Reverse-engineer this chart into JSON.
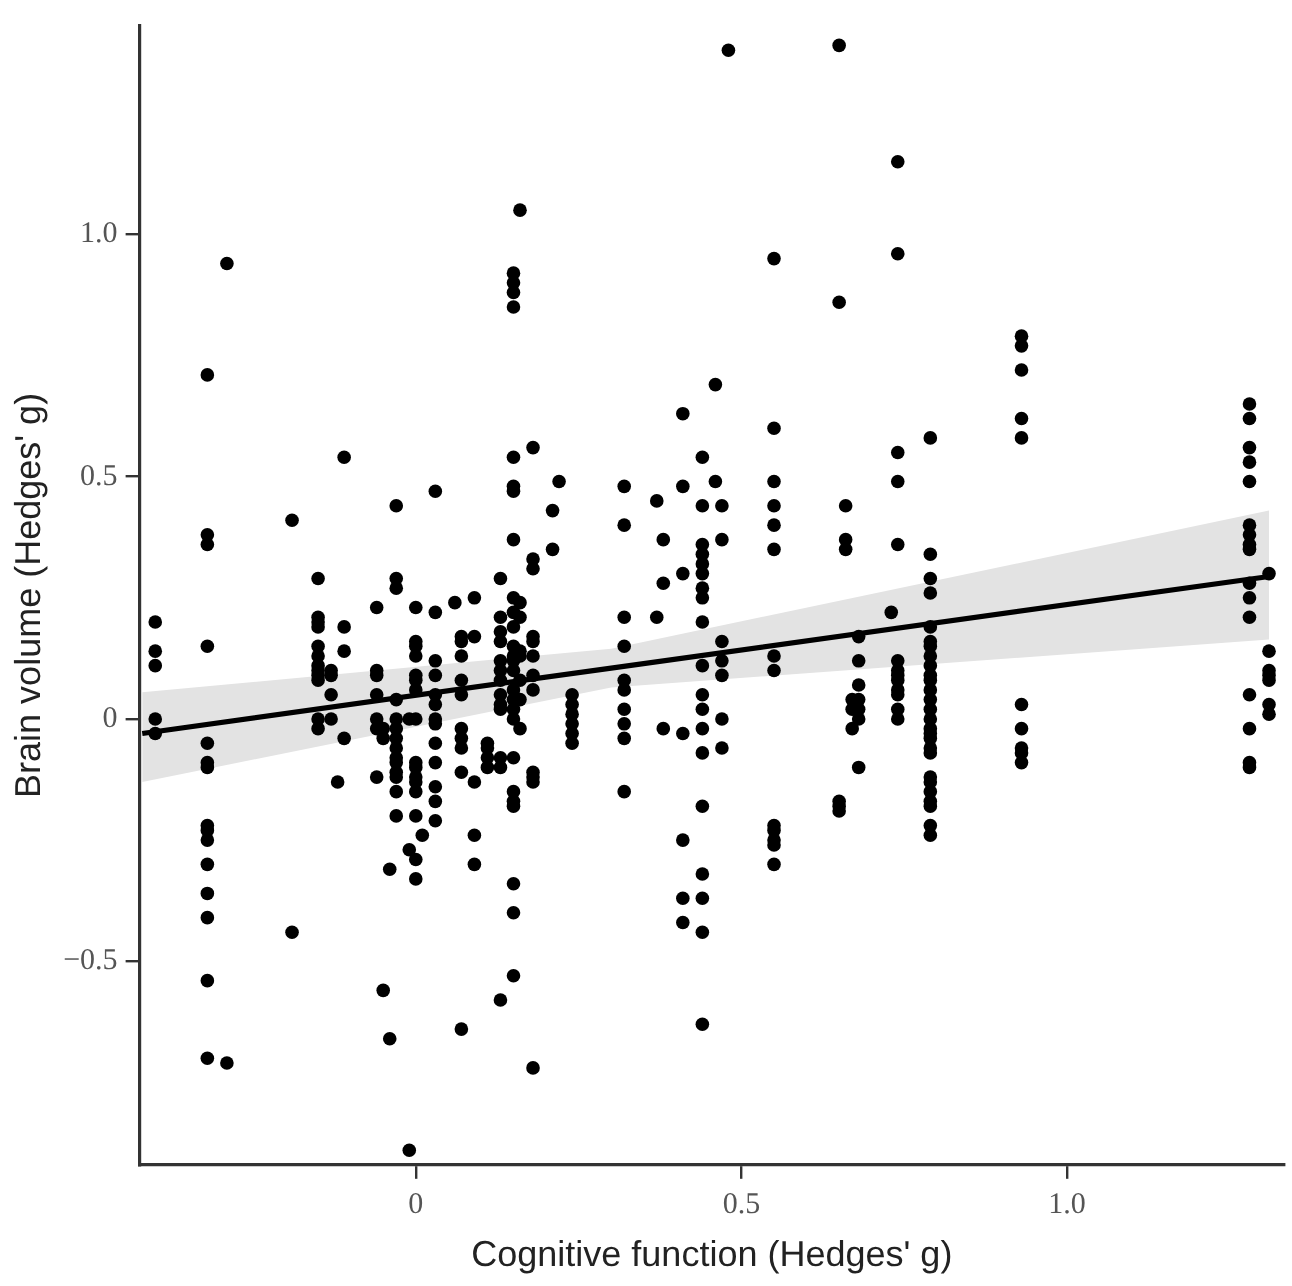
{
  "chart_data": {
    "type": "scatter",
    "xlabel": "Cognitive function (Hedges' g)",
    "ylabel": "Brain volume (Hedges' g)",
    "xlim": [
      -0.424,
      1.333
    ],
    "ylim": [
      -0.92,
      1.43
    ],
    "xticks": [
      0,
      0.5,
      {
        "value": 1,
        "label": "1.0"
      }
    ],
    "yticks": [
      {
        "value": -0.5,
        "label": "−0.5"
      },
      0,
      0.5,
      {
        "value": 1,
        "label": "1.0"
      }
    ],
    "grid": false,
    "series": [
      {
        "marker": "circle",
        "color": "#000000",
        "x": [
          -0.4,
          -0.4,
          -0.4,
          -0.4,
          -0.4,
          -0.32,
          -0.32,
          -0.32,
          -0.32,
          -0.32,
          -0.32,
          -0.32,
          -0.32,
          -0.32,
          -0.32,
          -0.32,
          -0.32,
          -0.32,
          -0.32,
          -0.32,
          -0.29,
          -0.29,
          -0.19,
          -0.19,
          -0.15,
          -0.15,
          -0.15,
          -0.15,
          -0.15,
          -0.15,
          -0.15,
          -0.15,
          -0.15,
          -0.15,
          -0.15,
          -0.15,
          -0.13,
          -0.13,
          -0.13,
          -0.13,
          -0.11,
          -0.11,
          -0.11,
          -0.11,
          -0.12,
          -0.06,
          -0.06,
          -0.06,
          -0.06,
          -0.06,
          -0.06,
          -0.06,
          -0.05,
          -0.05,
          -0.05,
          -0.04,
          -0.04,
          -0.03,
          -0.03,
          -0.03,
          -0.03,
          -0.03,
          -0.03,
          -0.03,
          -0.03,
          -0.03,
          -0.03,
          -0.03,
          -0.03,
          -0.03,
          -0.03,
          -0.01,
          -0.01,
          -0.01,
          0,
          0,
          0,
          0,
          0,
          0,
          0,
          0,
          0,
          0,
          0,
          0,
          0,
          0,
          0,
          0,
          0.01,
          0.03,
          0.03,
          0.03,
          0.03,
          0.03,
          0.03,
          0.03,
          0.03,
          0.03,
          0.03,
          0.03,
          0.03,
          0.03,
          0.06,
          0.07,
          0.07,
          0.07,
          0.07,
          0.07,
          0.07,
          0.07,
          0.07,
          0.07,
          0.07,
          0.09,
          0.09,
          0.09,
          0.09,
          0.09,
          0.11,
          0.11,
          0.11,
          0.11,
          0.13,
          0.13,
          0.13,
          0.13,
          0.13,
          0.13,
          0.13,
          0.13,
          0.13,
          0.13,
          0.13,
          0.13,
          0.13,
          0.15,
          0.15,
          0.15,
          0.15,
          0.15,
          0.15,
          0.15,
          0.15,
          0.15,
          0.15,
          0.15,
          0.15,
          0.15,
          0.15,
          0.15,
          0.15,
          0.15,
          0.15,
          0.15,
          0.15,
          0.15,
          0.15,
          0.15,
          0.15,
          0.15,
          0.15,
          0.16,
          0.16,
          0.16,
          0.16,
          0.16,
          0.16,
          0.16,
          0.16,
          0.18,
          0.18,
          0.18,
          0.18,
          0.18,
          0.18,
          0.18,
          0.18,
          0.18,
          0.18,
          0.18,
          0.18,
          0.21,
          0.21,
          0.22,
          0.24,
          0.24,
          0.24,
          0.24,
          0.24,
          0.24,
          0.32,
          0.32,
          0.32,
          0.32,
          0.32,
          0.32,
          0.32,
          0.32,
          0.32,
          0.32,
          0.37,
          0.37,
          0.38,
          0.38,
          0.38,
          0.41,
          0.41,
          0.41,
          0.41,
          0.41,
          0.41,
          0.41,
          0.44,
          0.44,
          0.44,
          0.44,
          0.44,
          0.44,
          0.44,
          0.44,
          0.44,
          0.44,
          0.44,
          0.44,
          0.44,
          0.44,
          0.44,
          0.44,
          0.44,
          0.44,
          0.44,
          0.46,
          0.46,
          0.47,
          0.47,
          0.47,
          0.47,
          0.47,
          0.47,
          0.47,
          0.48,
          0.55,
          0.55,
          0.55,
          0.55,
          0.55,
          0.55,
          0.55,
          0.55,
          0.55,
          0.55,
          0.55,
          0.55,
          0.55,
          0.65,
          0.65,
          0.65,
          0.65,
          0.65,
          0.66,
          0.66,
          0.66,
          0.68,
          0.68,
          0.68,
          0.68,
          0.68,
          0.68,
          0.68,
          0.67,
          0.67,
          0.67,
          0.73,
          0.74,
          0.74,
          0.74,
          0.74,
          0.74,
          0.74,
          0.74,
          0.74,
          0.74,
          0.74,
          0.74,
          0.74,
          0.74,
          0.79,
          0.79,
          0.79,
          0.79,
          0.79,
          0.79,
          0.79,
          0.79,
          0.79,
          0.79,
          0.79,
          0.79,
          0.79,
          0.79,
          0.79,
          0.79,
          0.79,
          0.79,
          0.79,
          0.79,
          0.79,
          0.79,
          0.79,
          0.79,
          0.79,
          0.79,
          0.79,
          0.93,
          0.93,
          0.93,
          0.93,
          0.93,
          0.93,
          0.93,
          0.93,
          0.93,
          0.93,
          1.28,
          1.28,
          1.28,
          1.28,
          1.28,
          1.28,
          1.28,
          1.28,
          1.28,
          1.28,
          1.28,
          1.28,
          1.28,
          1.28,
          1.28,
          1.28,
          1.31,
          1.31,
          1.31,
          1.31,
          1.31,
          1.31,
          1.31
        ],
        "values": [
          0.2,
          0.14,
          0.11,
          0,
          -0.03,
          0.71,
          0.38,
          0.36,
          0.15,
          -0.05,
          -0.09,
          -0.1,
          -0.22,
          -0.23,
          -0.25,
          -0.3,
          -0.36,
          -0.41,
          -0.54,
          -0.7,
          0.94,
          -0.71,
          0.41,
          -0.44,
          0.29,
          0.21,
          0.2,
          0.19,
          0.15,
          0.13,
          0.11,
          0.1,
          0.09,
          0.08,
          0,
          -0.02,
          0.1,
          0.09,
          0.05,
          0,
          0.54,
          0.19,
          0.14,
          -0.04,
          -0.13,
          0.23,
          0.1,
          0.09,
          0.05,
          0,
          -0.02,
          -0.12,
          -0.56,
          -0.04,
          -0.02,
          -0.66,
          -0.31,
          0.44,
          0.29,
          0.27,
          0.04,
          0,
          -0.02,
          -0.04,
          -0.06,
          -0.08,
          -0.09,
          -0.11,
          -0.12,
          -0.15,
          -0.2,
          -0.89,
          -0.27,
          0,
          0.23,
          0.16,
          0.15,
          0.13,
          0.09,
          0.08,
          0.06,
          0,
          -0.09,
          -0.1,
          -0.12,
          -0.13,
          -0.15,
          -0.2,
          -0.29,
          -0.33,
          -0.24,
          0.47,
          0.22,
          0.12,
          0.09,
          0.05,
          0.03,
          0,
          -0.01,
          -0.05,
          -0.09,
          -0.14,
          -0.17,
          -0.21,
          0.24,
          0.17,
          0.16,
          0.13,
          0.08,
          0.05,
          -0.02,
          -0.04,
          -0.06,
          -0.11,
          -0.64,
          0.25,
          0.17,
          -0.13,
          -0.24,
          -0.3,
          -0.05,
          -0.06,
          -0.08,
          -0.1,
          0.29,
          0.21,
          0.18,
          0.16,
          0.12,
          0.1,
          0.08,
          0.05,
          0.03,
          0.02,
          -0.08,
          -0.1,
          -0.58,
          0.92,
          0.9,
          0.88,
          0.85,
          0.54,
          0.48,
          0.47,
          0.37,
          0.25,
          0.22,
          0.19,
          0.15,
          0.13,
          0.12,
          0.1,
          0.06,
          0.04,
          0.02,
          0,
          -0.08,
          -0.15,
          -0.17,
          -0.18,
          -0.34,
          -0.4,
          -0.53,
          1.05,
          0.24,
          0.21,
          0.14,
          0.13,
          0.08,
          0.04,
          -0.02,
          0.56,
          0.33,
          0.31,
          0.17,
          0.16,
          0.13,
          0.09,
          0.06,
          -0.11,
          -0.12,
          -0.13,
          -0.72,
          0.43,
          0.35,
          0.49,
          0.05,
          0.03,
          0.01,
          -0.01,
          -0.03,
          -0.05,
          0.48,
          0.4,
          0.21,
          0.15,
          0.08,
          0.06,
          0.02,
          -0.01,
          -0.04,
          -0.15,
          0.45,
          0.21,
          0.37,
          0.28,
          -0.02,
          0.63,
          0.48,
          0.3,
          -0.03,
          -0.25,
          -0.37,
          -0.42,
          0.54,
          0.44,
          0.36,
          0.34,
          0.32,
          0.3,
          0.27,
          0.25,
          0.2,
          0.11,
          0.05,
          0.02,
          -0.02,
          -0.07,
          -0.18,
          -0.32,
          -0.37,
          -0.44,
          -0.63,
          0.69,
          0.49,
          0.44,
          0.37,
          0.16,
          0.12,
          0.09,
          0,
          -0.06,
          1.38,
          0.95,
          0.6,
          0.49,
          0.44,
          0.4,
          0.35,
          0.13,
          0.1,
          -0.22,
          -0.23,
          -0.25,
          -0.26,
          -0.3,
          1.39,
          0.86,
          -0.17,
          -0.18,
          -0.19,
          0.44,
          0.37,
          0.35,
          0.17,
          0.12,
          0.07,
          0.04,
          0.02,
          0,
          -0.1,
          0.04,
          0.02,
          -0.02,
          0.22,
          1.15,
          0.96,
          0.55,
          0.49,
          0.36,
          0.12,
          0.1,
          0.09,
          0.08,
          0.06,
          0.05,
          0.02,
          0,
          0.58,
          0.34,
          0.29,
          0.26,
          0.19,
          0.16,
          0.15,
          0.13,
          0.11,
          0.09,
          0.08,
          0.06,
          0.04,
          0.02,
          0,
          -0.02,
          -0.03,
          -0.04,
          -0.06,
          -0.07,
          -0.12,
          -0.13,
          -0.15,
          -0.17,
          -0.18,
          -0.22,
          -0.24,
          0.79,
          0.77,
          0.72,
          0.62,
          0.58,
          0.03,
          -0.02,
          -0.06,
          -0.07,
          -0.09,
          0.65,
          0.62,
          0.56,
          0.53,
          0.49,
          0.4,
          0.38,
          0.36,
          0.35,
          0.28,
          0.25,
          0.21,
          0.05,
          -0.02,
          -0.09,
          -0.1,
          0.3,
          0.14,
          0.1,
          0.09,
          0.08,
          0.03,
          0.01
        ]
      },
      {
        "type": "line",
        "color": "#000000",
        "x": [
          -0.42,
          0.3,
          1.31
        ],
        "values": [
          -0.03,
          0.105,
          0.294
        ],
        "lower": [
          -0.13,
          0.065,
          0.164
        ],
        "upper": [
          0.055,
          0.145,
          0.43
        ]
      }
    ]
  }
}
